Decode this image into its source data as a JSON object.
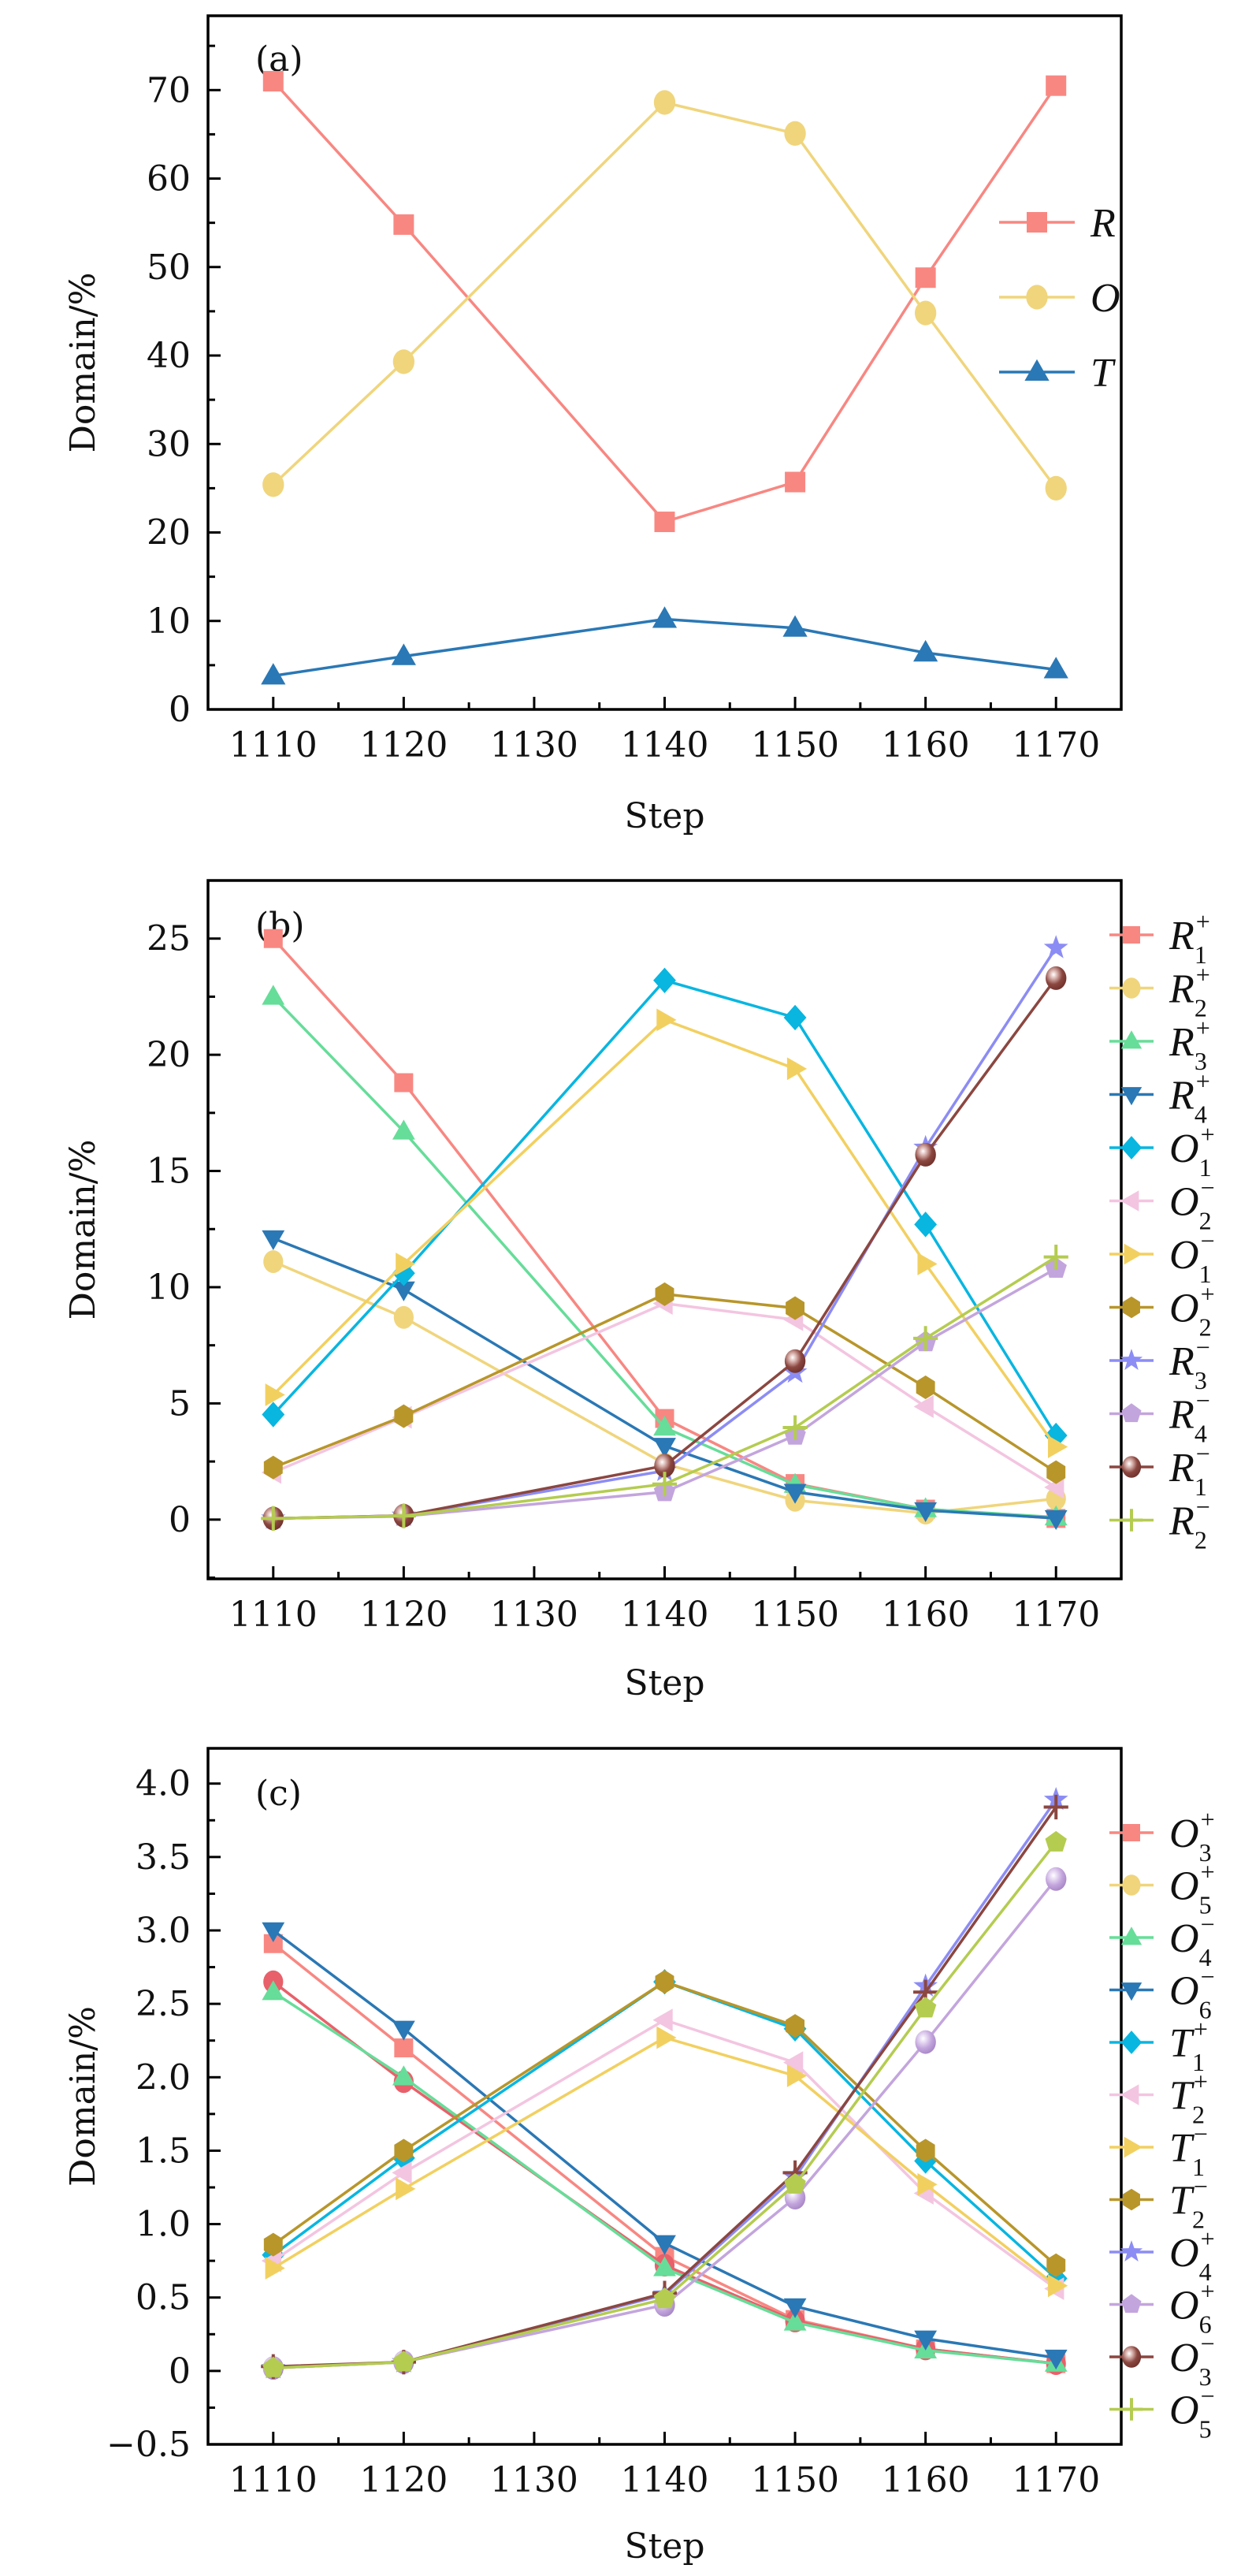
{
  "figure": {
    "panels": [
      "a",
      "b",
      "c"
    ]
  },
  "chart_data": [
    {
      "id": "a",
      "type": "line",
      "panel_label": "(a)",
      "title": "",
      "xlabel": "Step",
      "ylabel": "Domain/%",
      "x": [
        1110,
        1120,
        1140,
        1150,
        1160,
        1170
      ],
      "xlim": [
        1105,
        1175
      ],
      "ylim": [
        0,
        78.4
      ],
      "xticks": [
        1110,
        1120,
        1130,
        1140,
        1150,
        1160,
        1170
      ],
      "xtick_labels": [
        "1110",
        "1120",
        "1130",
        "1140",
        "1150",
        "1160",
        "1170"
      ],
      "yticks": [
        0,
        10,
        20,
        30,
        40,
        50,
        60,
        70
      ],
      "ytick_labels": [
        "0",
        "10",
        "20",
        "30",
        "40",
        "50",
        "60",
        "70"
      ],
      "y_minor_step": 5,
      "x_minor_step": 5,
      "legend_placement": "right-inside",
      "series": [
        {
          "name": "R",
          "sub": "",
          "sup": "",
          "color": "#f88782",
          "marker": "square",
          "values": [
            71.0,
            54.8,
            21.2,
            25.7,
            48.8,
            70.5
          ]
        },
        {
          "name": "O",
          "sub": "",
          "sup": "",
          "color": "#f0d57c",
          "marker": "circle",
          "values": [
            25.4,
            39.3,
            68.6,
            65.1,
            44.8,
            25.0
          ]
        },
        {
          "name": "T",
          "sub": "",
          "sup": "",
          "color": "#2a78b5",
          "marker": "triangle-up",
          "values": [
            3.8,
            6.0,
            10.2,
            9.2,
            6.4,
            4.5
          ]
        }
      ]
    },
    {
      "id": "b",
      "type": "line",
      "panel_label": "(b)",
      "title": "",
      "xlabel": "Step",
      "ylabel": "Domain/%",
      "x": [
        1110,
        1120,
        1140,
        1150,
        1160,
        1170
      ],
      "xlim": [
        1105,
        1175
      ],
      "ylim": [
        -2.55,
        27.5
      ],
      "xticks": [
        1110,
        1120,
        1130,
        1140,
        1150,
        1160,
        1170
      ],
      "xtick_labels": [
        "1110",
        "1120",
        "1130",
        "1140",
        "1150",
        "1160",
        "1170"
      ],
      "yticks": [
        0,
        5,
        10,
        15,
        20,
        25
      ],
      "ytick_labels": [
        "0",
        "5",
        "10",
        "15",
        "20",
        "25"
      ],
      "y_minor_step": 2.5,
      "x_minor_step": 5,
      "legend_placement": "right-outside",
      "series": [
        {
          "name": "R",
          "sub": "1",
          "sup": "+",
          "color": "#f88782",
          "marker": "square",
          "values": [
            25.0,
            18.8,
            4.35,
            1.55,
            0.45,
            0.05
          ]
        },
        {
          "name": "R",
          "sub": "2",
          "sup": "+",
          "color": "#f0d57c",
          "marker": "circle",
          "values": [
            11.1,
            8.7,
            2.4,
            0.83,
            0.28,
            0.9
          ]
        },
        {
          "name": "R",
          "sub": "3",
          "sup": "+",
          "color": "#66dd99",
          "marker": "triangle-up",
          "values": [
            22.5,
            16.7,
            3.96,
            1.5,
            0.45,
            0.1
          ]
        },
        {
          "name": "R",
          "sub": "4",
          "sup": "+",
          "color": "#2a78b5",
          "marker": "triangle-down",
          "values": [
            12.1,
            9.9,
            3.17,
            1.19,
            0.4,
            0.06
          ]
        },
        {
          "name": "O",
          "sub": "1",
          "sup": "+",
          "color": "#08b6e0",
          "marker": "diamond",
          "values": [
            4.52,
            10.6,
            23.2,
            21.6,
            12.7,
            3.62
          ]
        },
        {
          "name": "O",
          "sub": "2",
          "sup": "−",
          "color": "#f3c5e0",
          "marker": "triangle-left",
          "values": [
            2.03,
            4.4,
            9.3,
            8.6,
            4.86,
            1.39
          ]
        },
        {
          "name": "O",
          "sub": "1",
          "sup": "−",
          "color": "#f2d060",
          "marker": "triangle-right",
          "values": [
            5.37,
            11.0,
            21.5,
            19.4,
            11.0,
            3.13
          ]
        },
        {
          "name": "O",
          "sub": "2",
          "sup": "+",
          "color": "#b8962a",
          "marker": "hexagon",
          "values": [
            2.24,
            4.45,
            9.7,
            9.1,
            5.69,
            2.04
          ]
        },
        {
          "name": "R",
          "sub": "3",
          "sup": "−",
          "color": "#8c8cf5",
          "marker": "star",
          "values": [
            0.05,
            0.17,
            2.1,
            6.33,
            16.0,
            24.6
          ]
        },
        {
          "name": "R",
          "sub": "4",
          "sup": "−",
          "color": "#c3a5dd",
          "marker": "pentagon",
          "values": [
            0.05,
            0.14,
            1.19,
            3.62,
            7.64,
            10.8
          ]
        },
        {
          "name": "R",
          "sub": "1",
          "sup": "−",
          "color": "#8b4740",
          "marker": "sphere",
          "values": [
            0.05,
            0.17,
            2.32,
            6.82,
            15.7,
            23.3
          ]
        },
        {
          "name": "R",
          "sub": "2",
          "sup": "−",
          "color": "#b4cc50",
          "marker": "plus",
          "values": [
            0.05,
            0.16,
            1.53,
            3.96,
            7.8,
            11.3
          ]
        }
      ]
    },
    {
      "id": "c",
      "type": "line",
      "panel_label": "(c)",
      "title": "",
      "xlabel": "Step",
      "ylabel": "Domain/%",
      "x": [
        1110,
        1120,
        1140,
        1150,
        1160,
        1170
      ],
      "xlim": [
        1105,
        1175
      ],
      "ylim": [
        -0.5,
        4.24
      ],
      "xticks": [
        1110,
        1120,
        1130,
        1140,
        1150,
        1160,
        1170
      ],
      "xtick_labels": [
        "1110",
        "1120",
        "1130",
        "1140",
        "1150",
        "1160",
        "1170"
      ],
      "yticks": [
        -0.5,
        0,
        0.5,
        1.0,
        1.5,
        2.0,
        2.5,
        3.0,
        3.5,
        4.0
      ],
      "ytick_labels": [
        "−0.5",
        "0",
        "0.5",
        "1.0",
        "1.5",
        "2.0",
        "2.5",
        "3.0",
        "3.5",
        "4.0"
      ],
      "y_minor_step": 0.25,
      "x_minor_step": 5,
      "legend_placement": "right-outside",
      "series": [
        {
          "name": "O",
          "sub": "3",
          "sup": "+",
          "color": "#f88782",
          "marker": "square",
          "values": [
            2.91,
            2.2,
            0.78,
            0.35,
            0.15,
            0.05
          ]
        },
        {
          "name": "O",
          "sub": "5",
          "sup": "+",
          "color": "#e8606a",
          "legend_color": "#f0d57c",
          "marker": "circle",
          "values": [
            2.65,
            1.97,
            0.72,
            0.34,
            0.15,
            0.05
          ]
        },
        {
          "name": "O",
          "sub": "4",
          "sup": "−",
          "color": "#66dd99",
          "marker": "triangle-up",
          "values": [
            2.58,
            2.0,
            0.7,
            0.33,
            0.14,
            0.05
          ]
        },
        {
          "name": "O",
          "sub": "6",
          "sup": "−",
          "color": "#2a78b5",
          "marker": "triangle-down",
          "values": [
            3.0,
            2.33,
            0.87,
            0.44,
            0.22,
            0.09
          ]
        },
        {
          "name": "T",
          "sub": "1",
          "sup": "+",
          "color": "#08b6e0",
          "marker": "diamond",
          "values": [
            0.79,
            1.45,
            2.65,
            2.33,
            1.43,
            0.63
          ]
        },
        {
          "name": "T",
          "sub": "2",
          "sup": "+",
          "color": "#f3c5e0",
          "marker": "triangle-left",
          "values": [
            0.75,
            1.35,
            2.39,
            2.1,
            1.21,
            0.56
          ]
        },
        {
          "name": "T",
          "sub": "1",
          "sup": "−",
          "color": "#f2d060",
          "marker": "triangle-right",
          "values": [
            0.7,
            1.24,
            2.27,
            2.01,
            1.27,
            0.58
          ]
        },
        {
          "name": "T",
          "sub": "2",
          "sup": "−",
          "color": "#b8962a",
          "marker": "hexagon",
          "values": [
            0.86,
            1.5,
            2.65,
            2.35,
            1.5,
            0.72
          ]
        },
        {
          "name": "O",
          "sub": "4",
          "sup": "+",
          "color": "#8c8cf5",
          "marker": "star",
          "values": [
            0.02,
            0.06,
            0.52,
            1.32,
            2.62,
            3.89
          ]
        },
        {
          "name": "O",
          "sub": "6",
          "sup": "+",
          "color": "#c3a5dd",
          "marker": "sphere",
          "legend_marker": "pentagon",
          "values": [
            0.02,
            0.06,
            0.45,
            1.18,
            2.24,
            3.35
          ]
        },
        {
          "name": "O",
          "sub": "3",
          "sup": "−",
          "color": "#8b4740",
          "marker": "plus",
          "legend_marker": "sphere",
          "values": [
            0.03,
            0.06,
            0.53,
            1.35,
            2.58,
            3.84
          ]
        },
        {
          "name": "O",
          "sub": "5",
          "sup": "−",
          "color": "#b4cc50",
          "marker": "pentagon",
          "legend_marker": "plus",
          "values": [
            0.02,
            0.06,
            0.49,
            1.27,
            2.47,
            3.6
          ]
        }
      ]
    }
  ]
}
